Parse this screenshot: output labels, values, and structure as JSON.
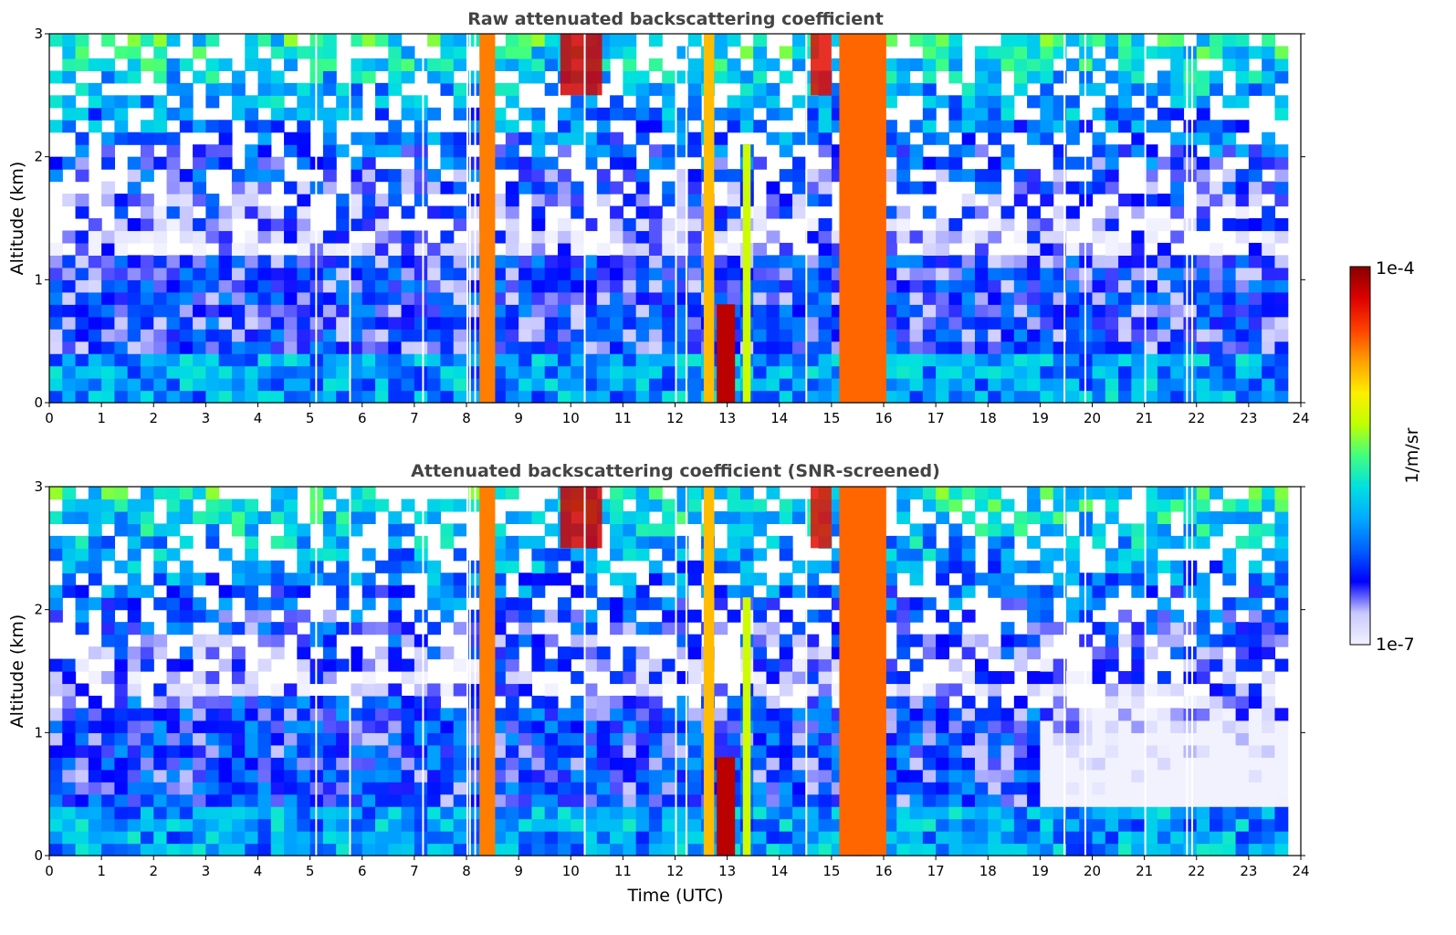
{
  "figure": {
    "colorbar": {
      "max_label": "1e-4",
      "min_label": "1e-7",
      "unit_label": "1/m/sr",
      "colormap": [
        "#f2f2ff",
        "#c8c8ff",
        "#0000ff",
        "#0060ff",
        "#00aaff",
        "#00e0e0",
        "#40ff80",
        "#c0ff00",
        "#ffee00",
        "#ffa000",
        "#ff4000",
        "#dd0000",
        "#880000"
      ],
      "scale": "log"
    }
  },
  "chart_data": [
    {
      "type": "heatmap",
      "title": "Raw attenuated backscattering coefficient",
      "xlabel": "",
      "ylabel": "Altitude (km)",
      "xlim": [
        0,
        24
      ],
      "ylim": [
        0,
        3
      ],
      "xticks": [
        "0",
        "1",
        "2",
        "3",
        "4",
        "5",
        "6",
        "7",
        "8",
        "9",
        "10",
        "11",
        "12",
        "13",
        "14",
        "15",
        "16",
        "17",
        "18",
        "19",
        "20",
        "21",
        "22",
        "23",
        "24"
      ],
      "yticks": [
        "0",
        "1",
        "2",
        "3"
      ],
      "features": [
        {
          "kind": "boundary-layer",
          "x_start": 0,
          "x_end": 23.8,
          "top_km": 0.4,
          "level": 0.32
        },
        {
          "kind": "aerosol-layer",
          "x_start": 0,
          "x_end": 23.8,
          "top_km": 1.2,
          "level": 0.18
        },
        {
          "kind": "column",
          "x_start": 8.25,
          "x_end": 8.55,
          "bottom_km": 0,
          "top_km": 3,
          "level": 0.78
        },
        {
          "kind": "column",
          "x_start": 12.55,
          "x_end": 12.75,
          "bottom_km": 0,
          "top_km": 3,
          "level": 0.72
        },
        {
          "kind": "column",
          "x_start": 12.8,
          "x_end": 13.15,
          "bottom_km": 0,
          "top_km": 0.8,
          "level": 0.95
        },
        {
          "kind": "column",
          "x_start": 13.3,
          "x_end": 13.45,
          "bottom_km": 0,
          "top_km": 2.1,
          "level": 0.6
        },
        {
          "kind": "column",
          "x_start": 15.15,
          "x_end": 16.05,
          "bottom_km": 0,
          "top_km": 3,
          "level": 0.8
        },
        {
          "kind": "cloud",
          "x_start": 9.8,
          "x_end": 10.6,
          "bottom_km": 2.5,
          "top_km": 3,
          "level": 0.93
        },
        {
          "kind": "cloud",
          "x_start": 14.6,
          "x_end": 15.0,
          "bottom_km": 2.5,
          "top_km": 3,
          "level": 0.9
        }
      ],
      "gaps_x": [
        5.1,
        5.75,
        7.15,
        8.0,
        8.05,
        8.15,
        10.25,
        12.0,
        12.2,
        14.5,
        19.45,
        19.85,
        21.0,
        21.8,
        21.9
      ]
    },
    {
      "type": "heatmap",
      "title": "Attenuated backscattering coefficient (SNR-screened)",
      "xlabel": "Time (UTC)",
      "ylabel": "Altitude (km)",
      "xlim": [
        0,
        24
      ],
      "ylim": [
        0,
        3
      ],
      "xticks": [
        "0",
        "1",
        "2",
        "3",
        "4",
        "5",
        "6",
        "7",
        "8",
        "9",
        "10",
        "11",
        "12",
        "13",
        "14",
        "15",
        "16",
        "17",
        "18",
        "19",
        "20",
        "21",
        "22",
        "23",
        "24"
      ],
      "yticks": [
        "0",
        "1",
        "2",
        "3"
      ],
      "features": [
        {
          "kind": "boundary-layer",
          "x_start": 0,
          "x_end": 23.8,
          "top_km": 0.4,
          "level": 0.32
        },
        {
          "kind": "aerosol-layer",
          "x_start": 0,
          "x_end": 19.0,
          "top_km": 1.3,
          "level": 0.2
        },
        {
          "kind": "column",
          "x_start": 8.25,
          "x_end": 8.55,
          "bottom_km": 0,
          "top_km": 3,
          "level": 0.78
        },
        {
          "kind": "column",
          "x_start": 12.55,
          "x_end": 12.75,
          "bottom_km": 0,
          "top_km": 3,
          "level": 0.72
        },
        {
          "kind": "column",
          "x_start": 12.8,
          "x_end": 13.15,
          "bottom_km": 0,
          "top_km": 0.8,
          "level": 0.95
        },
        {
          "kind": "column",
          "x_start": 13.3,
          "x_end": 13.45,
          "bottom_km": 0,
          "top_km": 2.1,
          "level": 0.6
        },
        {
          "kind": "column",
          "x_start": 15.15,
          "x_end": 16.05,
          "bottom_km": 0,
          "top_km": 3,
          "level": 0.8
        },
        {
          "kind": "cloud",
          "x_start": 9.8,
          "x_end": 10.6,
          "bottom_km": 2.5,
          "top_km": 3,
          "level": 0.93
        },
        {
          "kind": "cloud",
          "x_start": 14.6,
          "x_end": 15.0,
          "bottom_km": 2.5,
          "top_km": 3,
          "level": 0.9
        }
      ],
      "gaps_x": [
        5.1,
        5.75,
        7.15,
        8.0,
        8.05,
        8.15,
        10.25,
        12.0,
        12.2,
        14.5,
        19.45,
        19.85,
        21.0,
        21.8,
        21.9
      ]
    }
  ]
}
